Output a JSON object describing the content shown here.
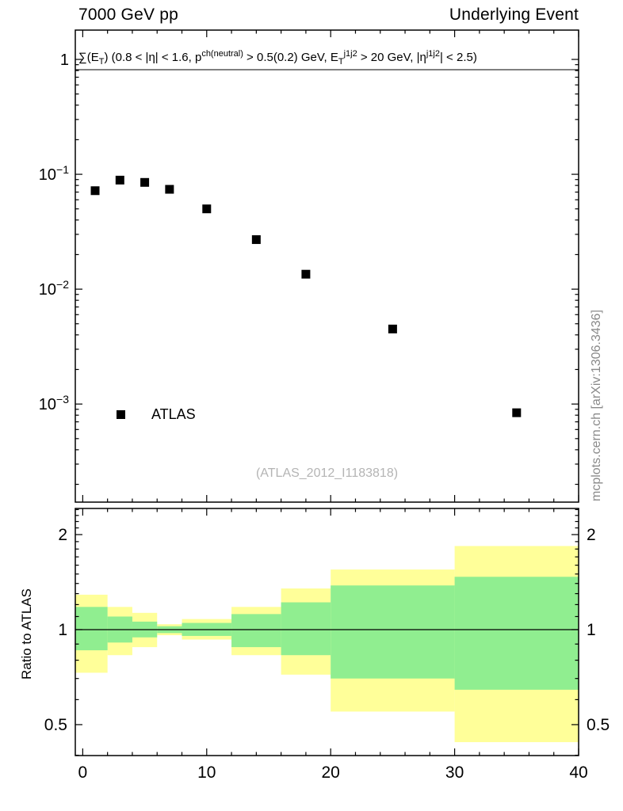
{
  "header": {
    "left": "7000 GeV pp",
    "right": "Underlying Event"
  },
  "top_panel": {
    "annotation": "∑(E_{T}) (0.8 < |η| < 1.6, p^{ch(neutral)} > 0.5(0.2) GeV, E_{T}^{j1j2} > 20 GeV, |η^{j1j2}| < 2.5)",
    "watermark": "(ATLAS_2012_I1183818)"
  },
  "side_caption": "mcplots.cern.ch [arXiv:1306.3436]",
  "colors": {
    "marker": "#000000",
    "watermark": "#b4b4b4",
    "side_caption": "#8a8a8a"
  },
  "chart_data": [
    {
      "type": "scatter",
      "panel": "top",
      "x": [
        1,
        3,
        5,
        7,
        10,
        14,
        18,
        25,
        35
      ],
      "y": [
        0.072,
        0.089,
        0.085,
        0.074,
        0.05,
        0.027,
        0.0135,
        0.0045,
        0.00084
      ],
      "xlim": [
        -0.6,
        40
      ],
      "ylim": [
        0.00014,
        1.8
      ],
      "yscale": "log",
      "xticks": [
        0,
        10,
        20,
        30,
        40
      ],
      "xtick_minor_step": 2,
      "ytick_exponents": [
        0,
        -1,
        -2,
        -3
      ],
      "legend": [
        {
          "label": "ATLAS",
          "marker": "filled-square"
        }
      ]
    },
    {
      "type": "area",
      "panel": "ratio",
      "ylabel": "Ratio to ATLAS",
      "bin_edges": [
        0,
        2,
        4,
        6,
        8,
        12,
        16,
        20,
        30,
        40
      ],
      "series": [
        {
          "name": "total-uncertainty-band",
          "color": "#ffff99",
          "lo": [
            0.73,
            0.83,
            0.88,
            0.96,
            0.93,
            0.83,
            0.72,
            0.55,
            0.44
          ],
          "hi": [
            1.29,
            1.18,
            1.13,
            1.04,
            1.08,
            1.18,
            1.35,
            1.55,
            1.84
          ]
        },
        {
          "name": "stat-uncertainty-band",
          "color": "#90ee90",
          "lo": [
            0.86,
            0.91,
            0.945,
            0.975,
            0.955,
            0.88,
            0.83,
            0.7,
            0.645
          ],
          "hi": [
            1.18,
            1.1,
            1.06,
            1.025,
            1.05,
            1.12,
            1.22,
            1.38,
            1.47
          ]
        }
      ],
      "reference_line": 1,
      "ylim": [
        0.399,
        2.42
      ],
      "yscale": "log",
      "yticks": [
        0.5,
        1,
        2
      ],
      "xticks": [
        0,
        10,
        20,
        30,
        40
      ]
    }
  ]
}
